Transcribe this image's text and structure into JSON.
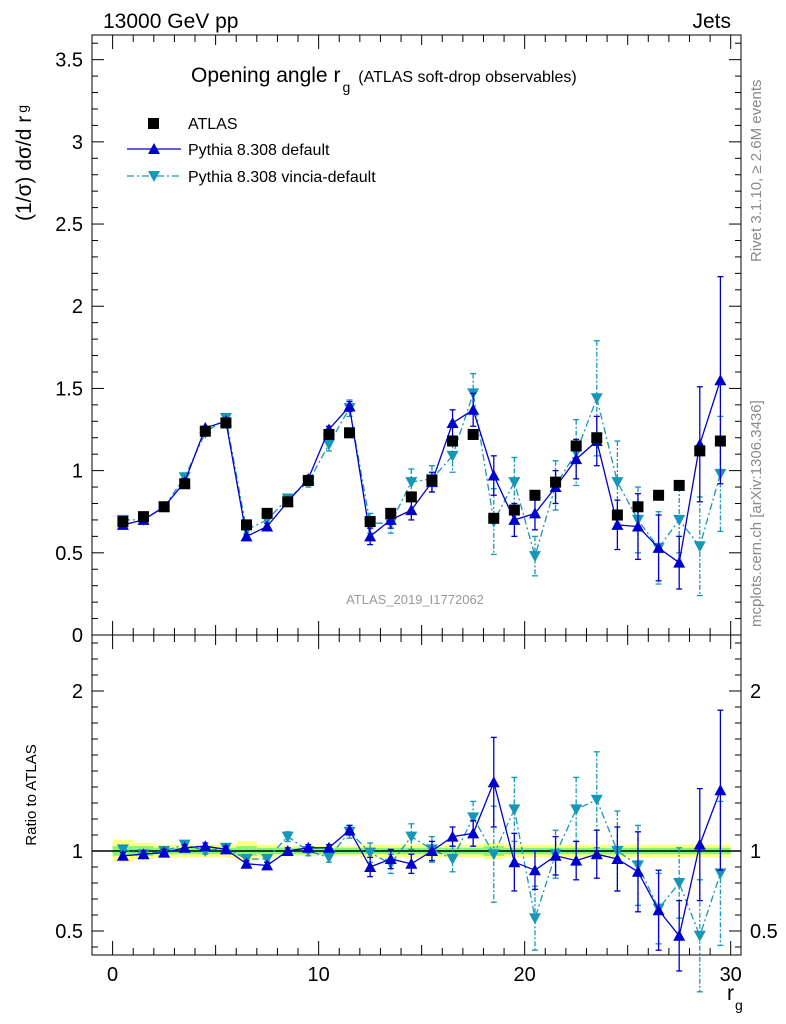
{
  "header": {
    "left": "13000 GeV pp",
    "right": "Jets"
  },
  "title": {
    "main": "Opening angle r",
    "sub": "g",
    "paren": "(ATLAS soft-drop observables)"
  },
  "side": {
    "rivet": "Rivet 3.1.10, ≥ 2.6M events",
    "mcplots": "mcplots.cern.ch [arXiv:1306.3436]"
  },
  "watermark": "ATLAS_2019_I1772062",
  "axes": {
    "ylabel_main": "(1/σ) dσ/d r",
    "ylabel_main_sub": "g",
    "ylabel_ratio": "Ratio to ATLAS",
    "xlabel": "r",
    "xlabel_sub": "g"
  },
  "legend": {
    "atlas": "ATLAS",
    "pythia_default": "Pythia 8.308 default",
    "pythia_vincia": "Pythia 8.308 vincia-default"
  },
  "colors": {
    "data": "#000000",
    "default": "#0000cc",
    "vincia": "#1797b7",
    "band_inner": "#7ff77f",
    "band_outer": "#ffff7f"
  },
  "chart_data": [
    {
      "type": "line",
      "name": "main",
      "xlim": [
        -1,
        30.5
      ],
      "ylim": [
        0,
        3.65
      ],
      "yticks": [
        "0",
        "0.5",
        "1",
        "1.5",
        "2",
        "2.5",
        "3",
        "3.5"
      ],
      "xticks": [
        "0",
        "10",
        "20",
        "30"
      ],
      "x": [
        0.5,
        1.5,
        2.5,
        3.5,
        4.5,
        5.5,
        6.5,
        7.5,
        8.5,
        9.5,
        10.5,
        11.5,
        12.5,
        13.5,
        14.5,
        15.5,
        16.5,
        17.5,
        18.5,
        19.5,
        20.5,
        21.5,
        22.5,
        23.5,
        24.5,
        25.5,
        26.5,
        27.5,
        28.5,
        29.5
      ],
      "atlas": [
        0.69,
        0.72,
        0.78,
        0.92,
        1.24,
        1.29,
        0.67,
        0.74,
        0.81,
        0.94,
        1.22,
        1.23,
        0.69,
        0.74,
        0.84,
        0.94,
        1.18,
        1.22,
        0.71,
        0.76,
        0.85,
        0.93,
        1.15,
        1.2,
        0.73,
        0.78,
        0.85,
        0.91,
        1.12,
        1.18
      ],
      "pythia_default": [
        0.67,
        0.7,
        0.78,
        0.93,
        1.26,
        1.3,
        0.6,
        0.66,
        0.81,
        0.95,
        1.25,
        1.39,
        0.6,
        0.7,
        0.76,
        0.93,
        1.29,
        1.37,
        0.97,
        0.7,
        0.74,
        0.9,
        1.07,
        1.18,
        0.67,
        0.66,
        0.53,
        0.44,
        1.16,
        1.55
      ],
      "pythia_default_err": [
        0.01,
        0.01,
        0.01,
        0.01,
        0.01,
        0.02,
        0.01,
        0.02,
        0.02,
        0.02,
        0.02,
        0.03,
        0.05,
        0.05,
        0.06,
        0.06,
        0.08,
        0.1,
        0.12,
        0.1,
        0.1,
        0.1,
        0.12,
        0.15,
        0.15,
        0.2,
        0.2,
        0.16,
        0.35,
        0.63
      ],
      "pythia_vincia": [
        0.7,
        0.7,
        0.78,
        0.96,
        1.23,
        1.32,
        0.64,
        0.7,
        0.83,
        0.93,
        1.16,
        1.38,
        0.68,
        0.68,
        0.93,
        0.95,
        1.09,
        1.47,
        0.69,
        0.93,
        0.48,
        0.91,
        1.11,
        1.44,
        0.93,
        0.7,
        0.53,
        0.7,
        0.54,
        0.98
      ],
      "pythia_vincia_err": [
        0.01,
        0.01,
        0.01,
        0.01,
        0.02,
        0.02,
        0.02,
        0.02,
        0.02,
        0.03,
        0.04,
        0.05,
        0.06,
        0.06,
        0.08,
        0.08,
        0.1,
        0.12,
        0.2,
        0.15,
        0.12,
        0.15,
        0.2,
        0.35,
        0.25,
        0.2,
        0.22,
        0.2,
        0.3,
        0.35
      ]
    },
    {
      "type": "line",
      "name": "ratio",
      "xlim": [
        -1,
        30.5
      ],
      "ylim": [
        0.35,
        2.35
      ],
      "yticks": [
        "0.5",
        "1",
        "2"
      ],
      "reference": 1,
      "x": [
        0.5,
        1.5,
        2.5,
        3.5,
        4.5,
        5.5,
        6.5,
        7.5,
        8.5,
        9.5,
        10.5,
        11.5,
        12.5,
        13.5,
        14.5,
        15.5,
        16.5,
        17.5,
        18.5,
        19.5,
        20.5,
        21.5,
        22.5,
        23.5,
        24.5,
        25.5,
        26.5,
        27.5,
        28.5,
        29.5
      ],
      "pythia_default": [
        0.97,
        0.98,
        0.99,
        1.02,
        1.03,
        1.01,
        0.92,
        0.91,
        1.0,
        1.02,
        1.02,
        1.13,
        0.9,
        0.95,
        0.92,
        1.0,
        1.09,
        1.11,
        1.43,
        0.93,
        0.88,
        0.97,
        0.94,
        0.98,
        0.95,
        0.87,
        0.63,
        0.47,
        1.04,
        1.38
      ],
      "pythia_default_err": [
        0.02,
        0.02,
        0.02,
        0.02,
        0.02,
        0.02,
        0.02,
        0.02,
        0.02,
        0.02,
        0.02,
        0.03,
        0.06,
        0.06,
        0.06,
        0.06,
        0.06,
        0.08,
        0.28,
        0.18,
        0.12,
        0.12,
        0.12,
        0.15,
        0.2,
        0.25,
        0.25,
        0.22,
        0.35,
        0.5
      ],
      "pythia_vincia": [
        1.01,
        0.98,
        1.0,
        1.04,
        1.0,
        1.02,
        0.95,
        0.95,
        1.09,
        1.0,
        0.96,
        1.12,
        0.99,
        0.92,
        1.09,
        1.01,
        0.95,
        1.21,
        0.98,
        1.26,
        0.58,
        0.98,
        1.26,
        1.32,
        1.0,
        0.91,
        0.64,
        0.8,
        0.47,
        0.86
      ],
      "pythia_vincia_err": [
        0.02,
        0.02,
        0.02,
        0.02,
        0.02,
        0.02,
        0.02,
        0.02,
        0.03,
        0.03,
        0.03,
        0.04,
        0.06,
        0.06,
        0.08,
        0.08,
        0.08,
        0.1,
        0.3,
        0.2,
        0.2,
        0.15,
        0.2,
        0.3,
        0.25,
        0.25,
        0.22,
        0.22,
        0.35,
        0.45
      ],
      "band_outer": [
        0.07,
        0.05,
        0.04,
        0.04,
        0.04,
        0.04,
        0.06,
        0.04,
        0.03,
        0.03,
        0.03,
        0.03,
        0.04,
        0.04,
        0.04,
        0.04,
        0.04,
        0.04,
        0.05,
        0.04,
        0.04,
        0.04,
        0.04,
        0.04,
        0.04,
        0.04,
        0.04,
        0.04,
        0.04,
        0.04
      ],
      "band_inner": [
        0.03,
        0.03,
        0.02,
        0.02,
        0.02,
        0.02,
        0.03,
        0.02,
        0.02,
        0.02,
        0.02,
        0.02,
        0.02,
        0.02,
        0.02,
        0.02,
        0.02,
        0.02,
        0.03,
        0.02,
        0.02,
        0.02,
        0.02,
        0.02,
        0.02,
        0.02,
        0.02,
        0.02,
        0.02,
        0.02
      ]
    }
  ]
}
